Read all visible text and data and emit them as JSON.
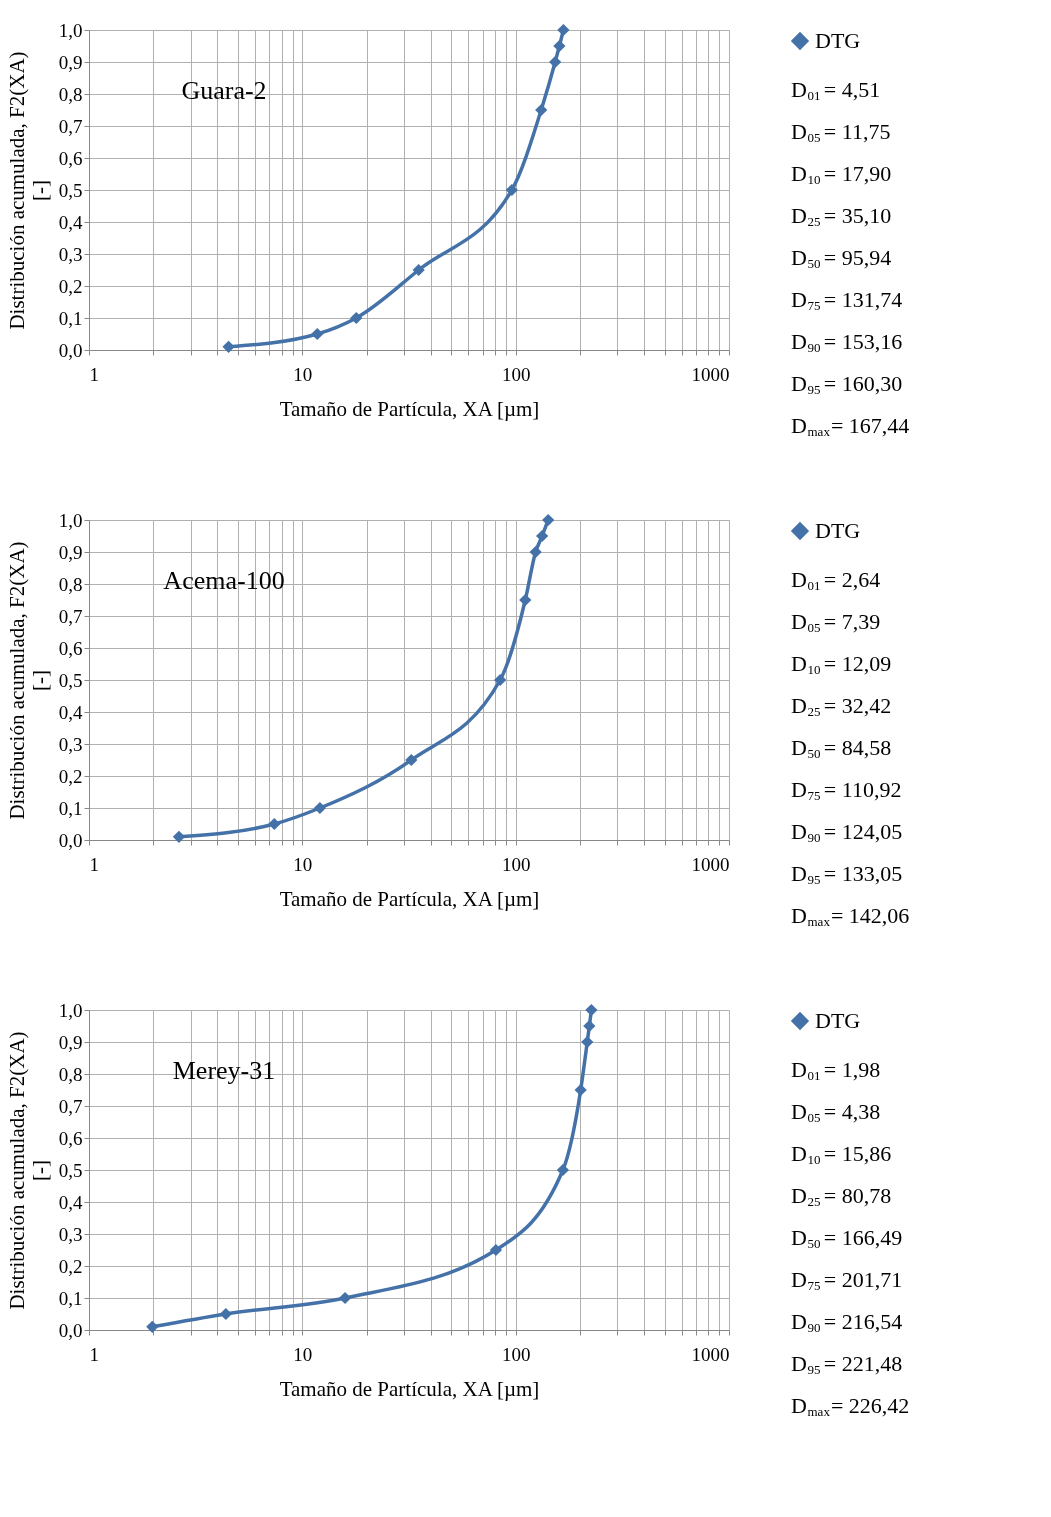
{
  "chart_data": [
    {
      "type": "line",
      "title": "Guara-2",
      "xlabel": "Tamaño de Partícula, XA [µm]",
      "ylabel": "Distribución acumulada, F2(XA) [-]",
      "log": "x",
      "grid": true,
      "legend": "top right",
      "marker": "diamond",
      "line_style": "solid",
      "x": [
        4.51,
        11.75,
        17.9,
        35.1,
        95.94,
        131.74,
        153.16,
        160.3,
        167.44
      ],
      "series": [
        {
          "name": "DTG",
          "color": "#4472a8",
          "values": [
            0.01,
            0.05,
            0.1,
            0.25,
            0.5,
            0.75,
            0.9,
            0.95,
            1.0
          ]
        }
      ],
      "xlim": [
        1,
        1000
      ],
      "ylim": [
        0,
        1
      ],
      "xticks": [
        1,
        {
          "value": 2,
          "label": null
        },
        {
          "value": 3,
          "label": null
        },
        {
          "value": 4,
          "label": null
        },
        {
          "value": 5,
          "label": null
        },
        {
          "value": 6,
          "label": null
        },
        {
          "value": 7,
          "label": null
        },
        {
          "value": 8,
          "label": null
        },
        {
          "value": 9,
          "label": null
        },
        10,
        {
          "value": 20,
          "label": null
        },
        {
          "value": 30,
          "label": null
        },
        {
          "value": 40,
          "label": null
        },
        {
          "value": 50,
          "label": null
        },
        {
          "value": 60,
          "label": null
        },
        {
          "value": 70,
          "label": null
        },
        {
          "value": 80,
          "label": null
        },
        {
          "value": 90,
          "label": null
        },
        100,
        {
          "value": 200,
          "label": null
        },
        {
          "value": 300,
          "label": null
        },
        {
          "value": 400,
          "label": null
        },
        {
          "value": 500,
          "label": null
        },
        {
          "value": 600,
          "label": null
        },
        {
          "value": 700,
          "label": null
        },
        {
          "value": 800,
          "label": null
        },
        {
          "value": 900,
          "label": null
        },
        1000
      ],
      "yticks": [
        {
          "value": 0,
          "label": "0,0"
        },
        {
          "value": 0.1,
          "label": "0,1"
        },
        {
          "value": 0.2,
          "label": "0,2"
        },
        {
          "value": 0.3,
          "label": "0,3"
        },
        {
          "value": 0.4,
          "label": "0,4"
        },
        {
          "value": 0.5,
          "label": "0,5"
        },
        {
          "value": 0.6,
          "label": "0,6"
        },
        {
          "value": 0.7,
          "label": "0,7"
        },
        {
          "value": 0.8,
          "label": "0,8"
        },
        {
          "value": 0.9,
          "label": "0,9"
        },
        {
          "value": 1.0,
          "label": "1,0"
        }
      ],
      "annotations": [
        "D$_{01}$= 4,51",
        "D$_{05}$= 11,75",
        "D$_{10}$= 17,90",
        "D$_{25}$= 35,10",
        "D$_{50}$= 95,94",
        "D$_{75}$= 131,74",
        "D$_{90}$= 153,16",
        "D$_{95}$= 160,30",
        "D$_{max}$= 167,44"
      ]
    },
    {
      "type": "line",
      "title": "Acema-100",
      "xlabel": "Tamaño de Partícula, XA [µm]",
      "ylabel": "Distribución acumulada, F2(XA) [-]",
      "log": "x",
      "grid": true,
      "legend": "top right",
      "marker": "diamond",
      "line_style": "solid",
      "x": [
        2.64,
        7.39,
        12.09,
        32.42,
        84.58,
        110.92,
        124.05,
        133.05,
        142.06
      ],
      "series": [
        {
          "name": "DTG",
          "color": "#4472a8",
          "values": [
            0.01,
            0.05,
            0.1,
            0.25,
            0.5,
            0.75,
            0.9,
            0.95,
            1.0
          ]
        }
      ],
      "xlim": [
        1,
        1000
      ],
      "ylim": [
        0,
        1
      ],
      "xticks": [
        1,
        {
          "value": 2,
          "label": null
        },
        {
          "value": 3,
          "label": null
        },
        {
          "value": 4,
          "label": null
        },
        {
          "value": 5,
          "label": null
        },
        {
          "value": 6,
          "label": null
        },
        {
          "value": 7,
          "label": null
        },
        {
          "value": 8,
          "label": null
        },
        {
          "value": 9,
          "label": null
        },
        10,
        {
          "value": 20,
          "label": null
        },
        {
          "value": 30,
          "label": null
        },
        {
          "value": 40,
          "label": null
        },
        {
          "value": 50,
          "label": null
        },
        {
          "value": 60,
          "label": null
        },
        {
          "value": 70,
          "label": null
        },
        {
          "value": 80,
          "label": null
        },
        {
          "value": 90,
          "label": null
        },
        100,
        {
          "value": 200,
          "label": null
        },
        {
          "value": 300,
          "label": null
        },
        {
          "value": 400,
          "label": null
        },
        {
          "value": 500,
          "label": null
        },
        {
          "value": 600,
          "label": null
        },
        {
          "value": 700,
          "label": null
        },
        {
          "value": 800,
          "label": null
        },
        {
          "value": 900,
          "label": null
        },
        1000
      ],
      "yticks": [
        {
          "value": 0,
          "label": "0,0"
        },
        {
          "value": 0.1,
          "label": "0,1"
        },
        {
          "value": 0.2,
          "label": "0,2"
        },
        {
          "value": 0.3,
          "label": "0,3"
        },
        {
          "value": 0.4,
          "label": "0,4"
        },
        {
          "value": 0.5,
          "label": "0,5"
        },
        {
          "value": 0.6,
          "label": "0,6"
        },
        {
          "value": 0.7,
          "label": "0,7"
        },
        {
          "value": 0.8,
          "label": "0,8"
        },
        {
          "value": 0.9,
          "label": "0,9"
        },
        {
          "value": 1.0,
          "label": "1,0"
        }
      ],
      "annotations": [
        "D$_{01}$= 2,64",
        "D$_{05}$= 7,39",
        "D$_{10}$= 12,09",
        "D$_{25}$= 32,42",
        "D$_{50}$= 84,58",
        "D$_{75}$= 110,92",
        "D$_{90}$= 124,05",
        "D$_{95}$= 133,05",
        "D$_{max}$= 142,06"
      ]
    },
    {
      "type": "line",
      "title": "Merey-31",
      "xlabel": "Tamaño de Partícula, XA [µm]",
      "ylabel": "Distribución acumulada, F2(XA) [-]",
      "log": "x",
      "grid": true,
      "legend": "top right",
      "marker": "diamond",
      "line_style": "solid",
      "x": [
        1.98,
        4.38,
        15.86,
        80.78,
        166.49,
        201.71,
        216.54,
        221.48,
        226.42
      ],
      "series": [
        {
          "name": "DTG",
          "color": "#4472a8",
          "values": [
            0.01,
            0.05,
            0.1,
            0.25,
            0.5,
            0.75,
            0.9,
            0.95,
            1.0
          ]
        }
      ],
      "xlim": [
        1,
        1000
      ],
      "ylim": [
        0,
        1
      ],
      "xticks": [
        1,
        {
          "value": 2,
          "label": null
        },
        {
          "value": 3,
          "label": null
        },
        {
          "value": 4,
          "label": null
        },
        {
          "value": 5,
          "label": null
        },
        {
          "value": 6,
          "label": null
        },
        {
          "value": 7,
          "label": null
        },
        {
          "value": 8,
          "label": null
        },
        {
          "value": 9,
          "label": null
        },
        10,
        {
          "value": 20,
          "label": null
        },
        {
          "value": 30,
          "label": null
        },
        {
          "value": 40,
          "label": null
        },
        {
          "value": 50,
          "label": null
        },
        {
          "value": 60,
          "label": null
        },
        {
          "value": 70,
          "label": null
        },
        {
          "value": 80,
          "label": null
        },
        {
          "value": 90,
          "label": null
        },
        100,
        {
          "value": 200,
          "label": null
        },
        {
          "value": 300,
          "label": null
        },
        {
          "value": 400,
          "label": null
        },
        {
          "value": 500,
          "label": null
        },
        {
          "value": 600,
          "label": null
        },
        {
          "value": 700,
          "label": null
        },
        {
          "value": 800,
          "label": null
        },
        {
          "value": 900,
          "label": null
        },
        1000
      ],
      "yticks": [
        {
          "value": 0,
          "label": "0,0"
        },
        {
          "value": 0.1,
          "label": "0,1"
        },
        {
          "value": 0.2,
          "label": "0,2"
        },
        {
          "value": 0.3,
          "label": "0,3"
        },
        {
          "value": 0.4,
          "label": "0,4"
        },
        {
          "value": 0.5,
          "label": "0,5"
        },
        {
          "value": 0.6,
          "label": "0,6"
        },
        {
          "value": 0.7,
          "label": "0,7"
        },
        {
          "value": 0.8,
          "label": "0,8"
        },
        {
          "value": 0.9,
          "label": "0,9"
        },
        {
          "value": 1.0,
          "label": "1,0"
        }
      ],
      "annotations": [
        "D$_{01}$= 1,98",
        "D$_{05}$= 4,38",
        "D$_{10}$= 15,86",
        "D$_{25}$= 80,78",
        "D$_{50}$= 166,49",
        "D$_{75}$= 201,71",
        "D$_{90}$= 216,54",
        "D$_{95}$= 221,48",
        "D$_{max}$= 226,42"
      ]
    }
  ]
}
